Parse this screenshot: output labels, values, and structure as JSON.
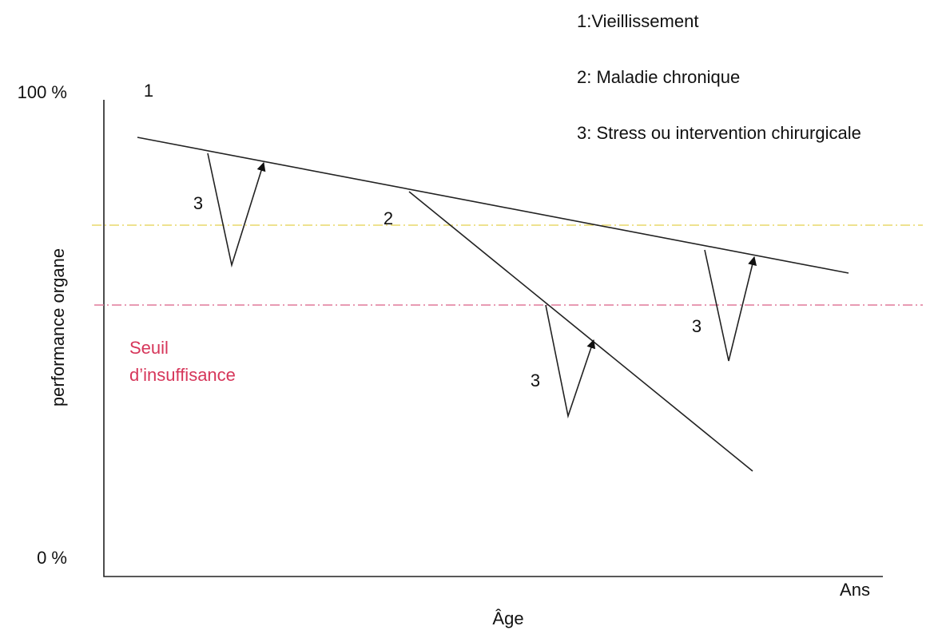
{
  "legend": [
    "1:Vieillissement",
    "2: Maladie chronique",
    "3: Stress ou intervention chirurgicale"
  ],
  "axis": {
    "y_top": "100 %",
    "y_bottom": "0 %",
    "y_label": "performance organe",
    "x_label": "Âge",
    "x_unit": "Ans"
  },
  "threshold": [
    "Seuil",
    "d’insuffisance"
  ],
  "curve_labels": [
    "1",
    "3",
    "2",
    "3",
    "3"
  ]
}
